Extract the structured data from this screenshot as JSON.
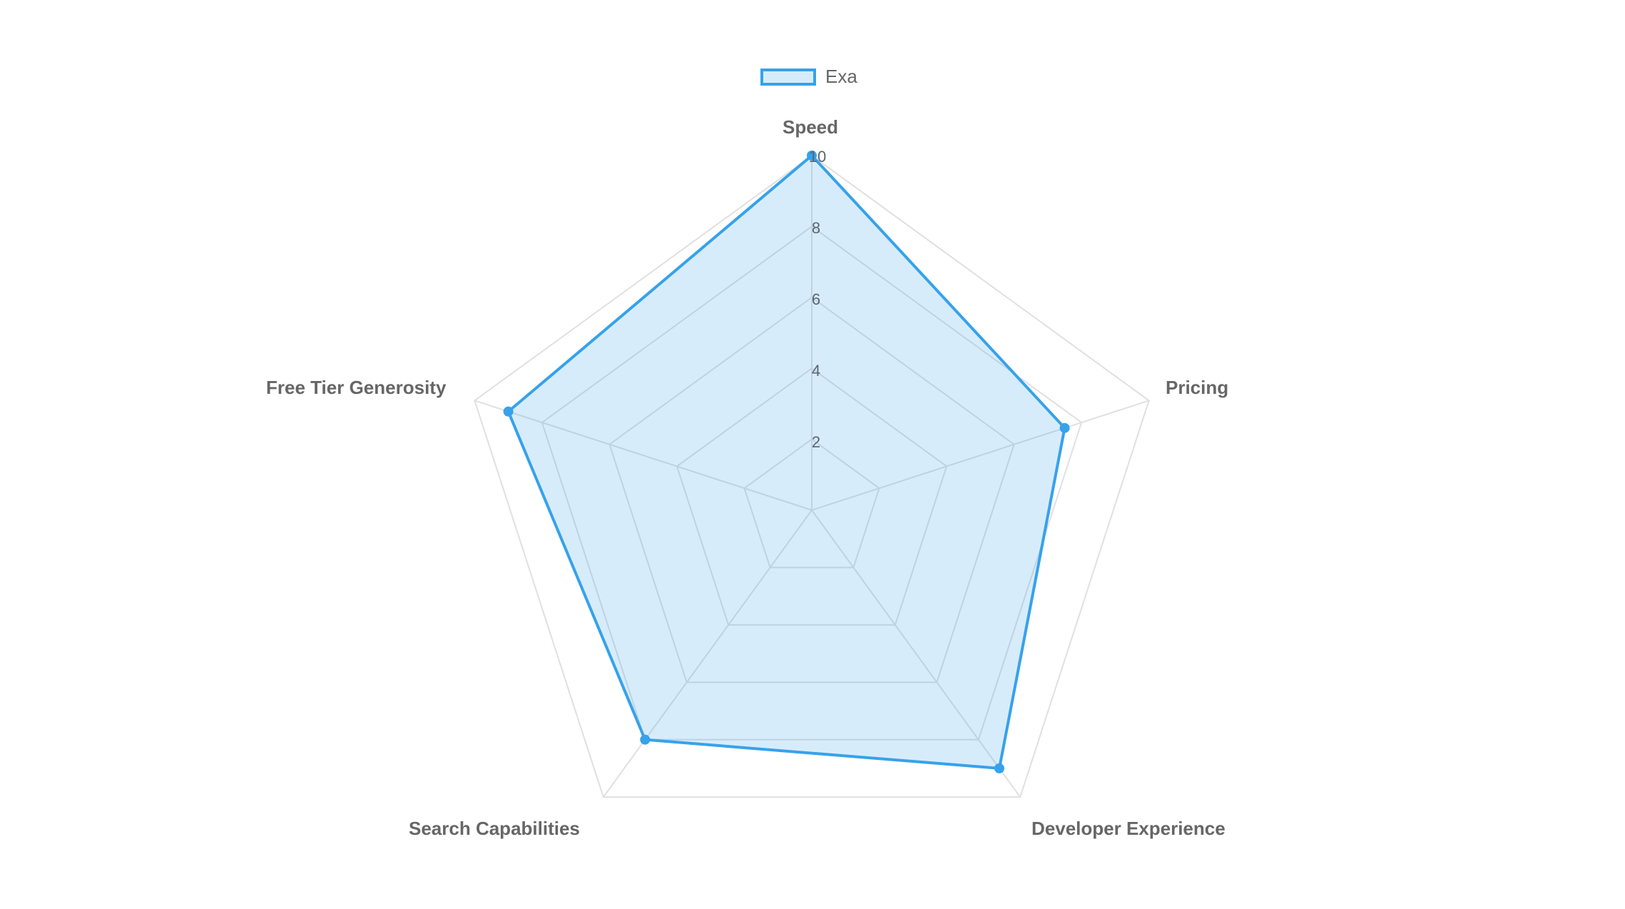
{
  "chart_data": {
    "type": "radar",
    "title": "",
    "categories": [
      "Speed",
      "Pricing",
      "Developer Experience",
      "Search Capabilities",
      "Free Tier Generosity"
    ],
    "series": [
      {
        "name": "Exa",
        "values": [
          10,
          7.5,
          9,
          8,
          9
        ],
        "color": "#36a2eb",
        "fill": "rgba(54,162,235,0.2)"
      }
    ],
    "rlim": [
      0,
      10
    ],
    "ticks": [
      "2",
      "4",
      "6",
      "8",
      "10"
    ],
    "legend_position": "top",
    "grid": true
  },
  "legend": {
    "label": "Exa"
  },
  "axis_labels": {
    "speed": "Speed",
    "pricing": "Pricing",
    "developer_experience": "Developer Experience",
    "search_capabilities": "Search Capabilities",
    "free_tier_generosity": "Free Tier Generosity"
  },
  "ticks": {
    "t2": "2",
    "t4": "4",
    "t6": "6",
    "t8": "8",
    "t10": "10"
  },
  "colors": {
    "series": "#36a2eb",
    "grid": "#e0e0e0",
    "label": "#666666",
    "tick": "#5a6570"
  }
}
